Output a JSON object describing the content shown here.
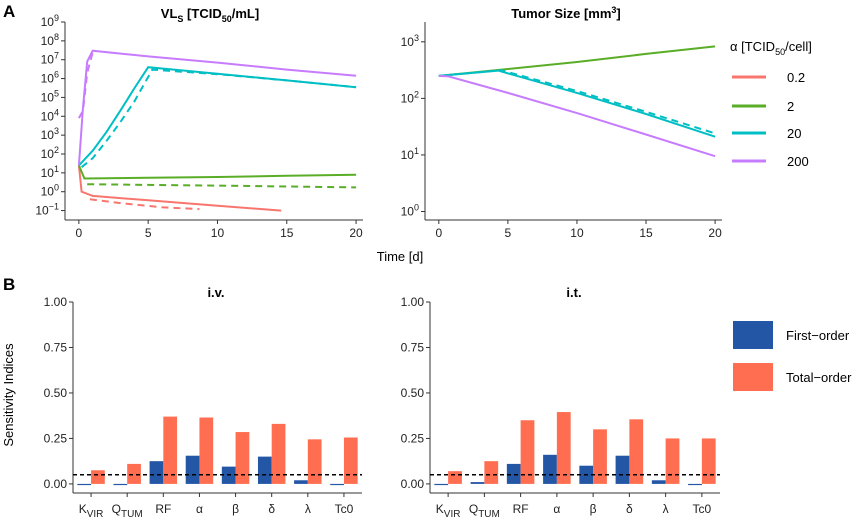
{
  "panel_labels": [
    "A",
    "B"
  ],
  "chart_data": [
    {
      "type": "line",
      "title": "VL_S [TCID50/mL]",
      "title_parts": {
        "main": "VL",
        "sub1": "S",
        "mid": " [TCID",
        "sub2": "50",
        "end": "/mL]"
      },
      "xlabel": "Time [d]",
      "yscale": "log",
      "xlim": [
        -1,
        20.5
      ],
      "ylim_exp": [
        -1.5,
        9
      ],
      "x_ticks": [
        0,
        5,
        10,
        15,
        20
      ],
      "y_ticks_exp": [
        -1,
        0,
        1,
        2,
        3,
        4,
        5,
        6,
        7,
        8,
        9
      ],
      "y_tick_base": "10",
      "series": [
        {
          "name": "0.2 i.v.",
          "color": "#F8766D",
          "dash": false,
          "x": [
            0,
            0.2,
            1,
            5,
            10,
            14.6
          ],
          "y": [
            25,
            1,
            0.6,
            0.35,
            0.18,
            0.1
          ]
        },
        {
          "name": "0.2 i.t.",
          "color": "#F8766D",
          "dash": true,
          "x": [
            0.8,
            3,
            6,
            8.7
          ],
          "y": [
            0.4,
            0.25,
            0.15,
            0.12
          ]
        },
        {
          "name": "2 i.v.",
          "color": "#5AAE27",
          "dash": false,
          "x": [
            0,
            0.4,
            5,
            10,
            15,
            20
          ],
          "y": [
            25,
            5,
            5.5,
            6,
            7,
            8
          ]
        },
        {
          "name": "2 i.t.",
          "color": "#5AAE27",
          "dash": true,
          "x": [
            0.6,
            5,
            10,
            15,
            20
          ],
          "y": [
            2.5,
            2.3,
            2.1,
            1.9,
            1.7
          ]
        },
        {
          "name": "20 i.v.",
          "color": "#00BFC4",
          "dash": false,
          "x": [
            0,
            1,
            2,
            3,
            4,
            5,
            10,
            15,
            20
          ],
          "y": [
            25,
            150,
            1500,
            20000,
            300000,
            4000000,
            1800000,
            800000,
            350000
          ]
        },
        {
          "name": "20 i.t.",
          "color": "#00BFC4",
          "dash": true,
          "x": [
            0.2,
            1,
            2,
            3,
            4,
            5.3,
            10,
            15,
            20
          ],
          "y": [
            20,
            60,
            500,
            5000,
            60000,
            3000000,
            1700000,
            800000,
            350000
          ]
        },
        {
          "name": "200 i.v.",
          "color": "#C77CFF",
          "dash": false,
          "x": [
            0,
            0.3,
            0.6,
            1,
            5,
            10,
            15,
            20
          ],
          "y": [
            25,
            30000,
            8000000,
            30000000,
            15000000,
            7000000,
            3000000,
            1400000
          ]
        },
        {
          "name": "200 i.t.",
          "color": "#C77CFF",
          "dash": true,
          "x": [
            0,
            0.3,
            0.6,
            1
          ],
          "y": [
            8000,
            20000,
            2000000,
            25000000
          ]
        }
      ]
    },
    {
      "type": "line",
      "title": "Tumor Size [mm3]",
      "title_parts": {
        "main": "Tumor Size [mm",
        "sup": "3",
        "end": "]"
      },
      "xlabel": "Time [d]",
      "yscale": "log",
      "xlim": [
        -1,
        20.5
      ],
      "ylim_exp": [
        -0.15,
        3.35
      ],
      "x_ticks": [
        0,
        5,
        10,
        15,
        20
      ],
      "y_ticks_exp": [
        0,
        1,
        2,
        3
      ],
      "y_tick_base": "10",
      "series": [
        {
          "name": "2 i.v.",
          "color": "#5AAE27",
          "dash": false,
          "x": [
            0,
            5,
            10,
            15,
            20
          ],
          "y": [
            250,
            330,
            440,
            610,
            830
          ]
        },
        {
          "name": "20 i.v.",
          "color": "#00BFC4",
          "dash": false,
          "x": [
            0,
            4.3,
            10,
            15,
            20
          ],
          "y": [
            250,
            310,
            125,
            53,
            21
          ]
        },
        {
          "name": "20 i.t.",
          "color": "#00BFC4",
          "dash": true,
          "x": [
            0,
            4.5,
            10,
            15,
            20
          ],
          "y": [
            250,
            315,
            135,
            58,
            24
          ]
        },
        {
          "name": "200 i.v.",
          "color": "#C77CFF",
          "dash": false,
          "x": [
            0,
            0.7,
            5,
            10,
            15,
            20
          ],
          "y": [
            250,
            245,
            125,
            55,
            23,
            9.5
          ]
        }
      ]
    },
    {
      "type": "bar",
      "title": "i.v.",
      "ylabel": "Sensitivity Indices",
      "ylim": [
        -0.05,
        1.0
      ],
      "y_ticks": [
        "0.00",
        "0.25",
        "0.50",
        "0.75",
        "1.00"
      ],
      "threshold": 0.05,
      "categories": [
        {
          "main": "K",
          "sub": "VIR"
        },
        {
          "main": "Q",
          "sub": "TUM"
        },
        {
          "main": "RF",
          "sub": ""
        },
        {
          "main": "α",
          "sub": ""
        },
        {
          "main": "β",
          "sub": ""
        },
        {
          "main": "δ",
          "sub": ""
        },
        {
          "main": "λ",
          "sub": ""
        },
        {
          "main": "Tc0",
          "sub": ""
        }
      ],
      "series": [
        {
          "name": "First-order",
          "color": "#2456A6",
          "values": [
            -0.005,
            -0.005,
            0.125,
            0.155,
            0.095,
            0.15,
            0.02,
            -0.005
          ]
        },
        {
          "name": "Total-order",
          "color": "#FF6E50",
          "values": [
            0.075,
            0.11,
            0.37,
            0.365,
            0.285,
            0.33,
            0.245,
            0.255
          ]
        }
      ]
    },
    {
      "type": "bar",
      "title": "i.t.",
      "ylabel": "",
      "ylim": [
        -0.05,
        1.0
      ],
      "y_ticks": [
        "0.00",
        "0.25",
        "0.50",
        "0.75",
        "1.00"
      ],
      "threshold": 0.05,
      "categories": [
        {
          "main": "K",
          "sub": "VIR"
        },
        {
          "main": "Q",
          "sub": "TUM"
        },
        {
          "main": "RF",
          "sub": ""
        },
        {
          "main": "α",
          "sub": ""
        },
        {
          "main": "β",
          "sub": ""
        },
        {
          "main": "δ",
          "sub": ""
        },
        {
          "main": "λ",
          "sub": ""
        },
        {
          "main": "Tc0",
          "sub": ""
        }
      ],
      "series": [
        {
          "name": "First-order",
          "color": "#2456A6",
          "values": [
            -0.005,
            0.01,
            0.11,
            0.16,
            0.1,
            0.155,
            0.02,
            -0.005
          ]
        },
        {
          "name": "Total-order",
          "color": "#FF6E50",
          "values": [
            0.07,
            0.125,
            0.35,
            0.395,
            0.3,
            0.355,
            0.25,
            0.25
          ]
        }
      ]
    }
  ],
  "legend_alpha": {
    "title_parts": {
      "main": "α [TCID",
      "sub": "50",
      "end": "/cell]"
    },
    "items": [
      {
        "label": "0.2",
        "color": "#F8766D"
      },
      {
        "label": "2",
        "color": "#5AAE27"
      },
      {
        "label": "20",
        "color": "#00BFC4"
      },
      {
        "label": "200",
        "color": "#C77CFF"
      }
    ]
  },
  "legend_indices": {
    "items": [
      {
        "label": "First−order",
        "color": "#2456A6"
      },
      {
        "label": "Total−order",
        "color": "#FF6E50"
      }
    ]
  }
}
